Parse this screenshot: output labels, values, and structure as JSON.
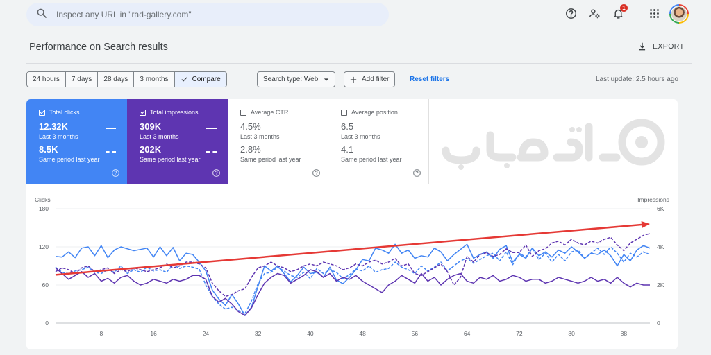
{
  "search": {
    "placeholder": "Inspect any URL in \"rad-gallery.com\""
  },
  "header": {
    "notification_count": "1"
  },
  "page": {
    "title": "Performance on Search results",
    "export_label": "EXPORT"
  },
  "filters": {
    "ranges": [
      "24 hours",
      "7 days",
      "28 days",
      "3 months",
      "Compare"
    ],
    "active_range": "Compare",
    "search_type": "Search type: Web",
    "add_filter": "Add filter",
    "reset": "Reset filters",
    "last_update": "Last update: 2.5 hours ago"
  },
  "metrics": {
    "clicks": {
      "label": "Total clicks",
      "value": "12.32K",
      "period": "Last 3 months",
      "prev_value": "8.5K",
      "prev_period": "Same period last year",
      "checked": true,
      "color": "#4285f4"
    },
    "impressions": {
      "label": "Total impressions",
      "value": "309K",
      "period": "Last 3 months",
      "prev_value": "202K",
      "prev_period": "Same period last year",
      "checked": true,
      "color": "#5e35b1"
    },
    "ctr": {
      "label": "Average CTR",
      "value": "4.5%",
      "period": "Last 3 months",
      "prev_value": "2.8%",
      "prev_period": "Same period last year",
      "checked": false
    },
    "position": {
      "label": "Average position",
      "value": "6.5",
      "period": "Last 3 months",
      "prev_value": "4.1",
      "prev_period": "Same period last year",
      "checked": false
    }
  },
  "chart_data": {
    "type": "line",
    "ylabel_left": "Clicks",
    "ylabel_right": "Impressions",
    "ylim_left": [
      0,
      180
    ],
    "ylim_right": [
      0,
      6000
    ],
    "yticks_left": [
      "0",
      "60",
      "120",
      "180"
    ],
    "yticks_right": [
      "0",
      "2K",
      "4K",
      "6K"
    ],
    "xticks": [
      "8",
      "16",
      "24",
      "32",
      "40",
      "48",
      "56",
      "64",
      "72",
      "80",
      "88"
    ],
    "xlim": [
      1,
      92
    ],
    "grid": true,
    "series": [
      {
        "axis": "left",
        "style": "solid",
        "color": "#4285f4",
        "values": [
          105,
          104,
          112,
          103,
          118,
          120,
          106,
          122,
          103,
          115,
          120,
          117,
          114,
          116,
          118,
          104,
          120,
          106,
          119,
          98,
          110,
          108,
          96,
          82,
          52,
          38,
          28,
          45,
          30,
          12,
          25,
          58,
          90,
          82,
          90,
          78,
          65,
          75,
          88,
          78,
          80,
          72,
          88,
          68,
          62,
          72,
          84,
          100,
          98,
          118,
          115,
          110,
          124,
          110,
          115,
          102,
          106,
          104,
          118,
          112,
          98,
          108,
          116,
          124,
          102,
          108,
          112,
          102,
          116,
          122,
          96,
          108,
          102,
          118,
          106,
          112,
          104,
          115,
          110,
          120,
          112,
          102,
          110,
          108,
          115,
          106,
          90,
          108,
          98,
          115,
          122,
          118
        ]
      },
      {
        "axis": "left",
        "style": "dashed",
        "color": "#4285f4",
        "values": [
          88,
          80,
          78,
          82,
          84,
          88,
          80,
          78,
          84,
          80,
          90,
          78,
          84,
          80,
          88,
          82,
          84,
          80,
          92,
          86,
          90,
          88,
          85,
          60,
          42,
          30,
          22,
          25,
          20,
          15,
          35,
          62,
          78,
          80,
          88,
          82,
          75,
          72,
          80,
          70,
          86,
          78,
          84,
          80,
          70,
          76,
          85,
          82,
          90,
          80,
          84,
          86,
          96,
          88,
          84,
          78,
          90,
          82,
          88,
          96,
          82,
          90,
          98,
          102,
          94,
          100,
          106,
          110,
          98,
          112,
          92,
          110,
          104,
          118,
          100,
          110,
          96,
          108,
          98,
          112,
          115,
          102,
          110,
          118,
          108,
          120,
          110,
          96,
          110,
          104,
          112,
          108
        ]
      },
      {
        "axis": "right",
        "style": "solid",
        "color": "#5e35b1",
        "values": [
          2900,
          2600,
          2300,
          2500,
          2700,
          2400,
          2600,
          2200,
          2350,
          2100,
          2400,
          2500,
          2200,
          2000,
          2100,
          2300,
          2200,
          2100,
          2300,
          2200,
          2300,
          2500,
          2500,
          2300,
          1400,
          1100,
          1300,
          1000,
          600,
          400,
          800,
          1500,
          2100,
          2400,
          2600,
          2500,
          2100,
          2300,
          2500,
          2800,
          2700,
          2400,
          2600,
          2200,
          2400,
          2300,
          2500,
          2200,
          2000,
          1800,
          1600,
          2000,
          2200,
          2500,
          2300,
          2100,
          2600,
          2200,
          2400,
          2000,
          2300,
          2500,
          2600,
          2200,
          2100,
          2400,
          2300,
          2500,
          2200,
          2300,
          2500,
          2400,
          2200,
          2300,
          2300,
          2100,
          2200,
          2400,
          2300,
          2200,
          2100,
          2200,
          2400,
          2200,
          2300,
          2100,
          2400,
          2100,
          1900,
          2100,
          2000,
          2000
        ]
      },
      {
        "axis": "right",
        "style": "dashed",
        "color": "#5e35b1",
        "values": [
          2700,
          2900,
          2800,
          2600,
          2900,
          3000,
          2700,
          2800,
          2900,
          2600,
          2800,
          2700,
          2900,
          2800,
          2700,
          2800,
          2900,
          3100,
          2900,
          3000,
          3200,
          3200,
          3100,
          2900,
          2100,
          1700,
          1400,
          1500,
          1700,
          1800,
          2400,
          2900,
          3000,
          3200,
          3000,
          2900,
          2700,
          2800,
          3000,
          3100,
          3000,
          3200,
          3100,
          3000,
          2800,
          2900,
          3100,
          3000,
          3200,
          3300,
          3100,
          3200,
          3400,
          3000,
          3100,
          2600,
          2500,
          2700,
          2900,
          3100,
          2700,
          2000,
          2400,
          3500,
          3200,
          3600,
          3700,
          3500,
          3600,
          3900,
          3700,
          3700,
          4100,
          3500,
          3800,
          3900,
          4200,
          4300,
          4100,
          4400,
          4200,
          4100,
          4300,
          4200,
          4400,
          4500,
          4100,
          3800,
          4200,
          4400,
          4600,
          4700
        ]
      }
    ],
    "annotation": {
      "type": "trend-arrow",
      "color": "#e53935",
      "from": {
        "x": 1,
        "clicks": 76
      },
      "to": {
        "x": 92,
        "clicks": 156
      }
    }
  },
  "colors": {
    "accent": "#1a73e8",
    "clicks": "#4285f4",
    "impressions": "#5e35b1",
    "trend_arrow": "#e53935"
  }
}
